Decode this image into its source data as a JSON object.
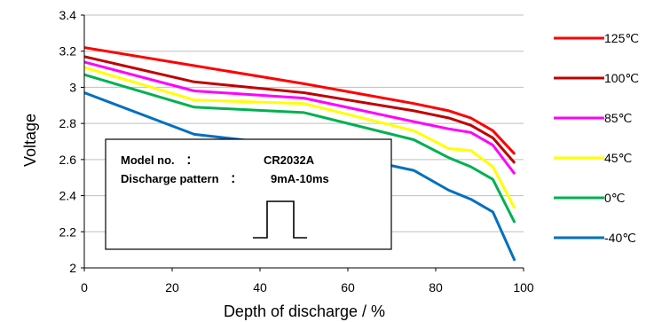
{
  "chart_data": {
    "type": "line",
    "title": "",
    "xlabel": "Depth of discharge / %",
    "ylabel": "Voltage",
    "xlim": [
      0,
      100
    ],
    "ylim": [
      2,
      3.4
    ],
    "xticks": [
      "0",
      "20",
      "40",
      "60",
      "80",
      "100"
    ],
    "yticks": [
      "2",
      "2.2",
      "2.4",
      "2.6",
      "2.8",
      "3",
      "3.2",
      "3.4"
    ],
    "grid": "horizontal",
    "legend_position": "right",
    "series": [
      {
        "name": "125℃",
        "color": "#ff0000",
        "x": [
          0,
          25,
          50,
          75,
          83,
          88,
          93,
          98
        ],
        "y": [
          3.22,
          3.12,
          3.02,
          2.91,
          2.87,
          2.83,
          2.76,
          2.63
        ]
      },
      {
        "name": "100℃",
        "color": "#c00000",
        "x": [
          0,
          25,
          50,
          75,
          83,
          88,
          93,
          98
        ],
        "y": [
          3.17,
          3.03,
          2.97,
          2.87,
          2.83,
          2.79,
          2.72,
          2.58
        ]
      },
      {
        "name": "85℃",
        "color": "#ff00ff",
        "x": [
          0,
          25,
          50,
          75,
          83,
          88,
          93,
          98
        ],
        "y": [
          3.14,
          2.98,
          2.94,
          2.81,
          2.77,
          2.75,
          2.68,
          2.52
        ]
      },
      {
        "name": "45℃",
        "color": "#ffff00",
        "x": [
          0,
          25,
          50,
          75,
          83,
          88,
          93,
          98
        ],
        "y": [
          3.11,
          2.93,
          2.91,
          2.76,
          2.66,
          2.65,
          2.56,
          2.33
        ]
      },
      {
        "name": "0℃",
        "color": "#00b050",
        "x": [
          0,
          25,
          50,
          75,
          83,
          88,
          93,
          98
        ],
        "y": [
          3.07,
          2.89,
          2.86,
          2.71,
          2.61,
          2.56,
          2.49,
          2.25
        ]
      },
      {
        "name": "-40℃",
        "color": "#0070c0",
        "x": [
          0,
          25,
          50,
          75,
          83,
          88,
          93,
          98
        ],
        "y": [
          2.97,
          2.74,
          2.67,
          2.54,
          2.43,
          2.38,
          2.31,
          2.04
        ]
      }
    ],
    "annotation": {
      "model_label": "Model no.　：",
      "model_value": "CR2032A",
      "pattern_label": "Discharge pattern　：",
      "pattern_value": "9mA-10ms"
    }
  }
}
